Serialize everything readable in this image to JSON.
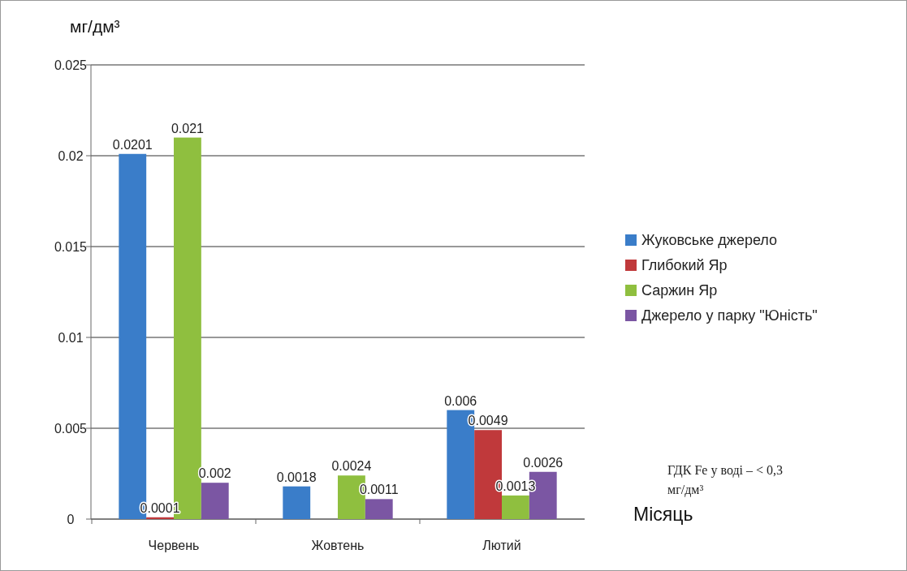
{
  "chart_data": {
    "type": "bar",
    "ylabel": "мг/дм³",
    "xlabel": "Місяць",
    "categories": [
      "Червень",
      "Жовтень",
      "Лютий"
    ],
    "series": [
      {
        "name": "Жуковське джерело",
        "color": "#3a7dc9",
        "values": [
          0.0201,
          0.0018,
          0.006
        ]
      },
      {
        "name": "Глибокий Яр",
        "color": "#c0393b",
        "values": [
          0.0001,
          null,
          0.0049
        ]
      },
      {
        "name": "Саржин Яр",
        "color": "#8fbf3f",
        "values": [
          0.021,
          0.0024,
          0.0013
        ]
      },
      {
        "name": "Джерело у парку \"Юність\"",
        "color": "#7b56a3",
        "values": [
          0.002,
          0.0011,
          0.0026
        ]
      }
    ],
    "ylim": [
      0,
      0.025
    ],
    "yticks": [
      0,
      0.005,
      0.01,
      0.015,
      0.02,
      0.025
    ],
    "grid": "y",
    "legend": "right",
    "data_labels": true,
    "annotations": [
      "ГДК Fe у воді – < 0,3 мг/дм³"
    ]
  }
}
